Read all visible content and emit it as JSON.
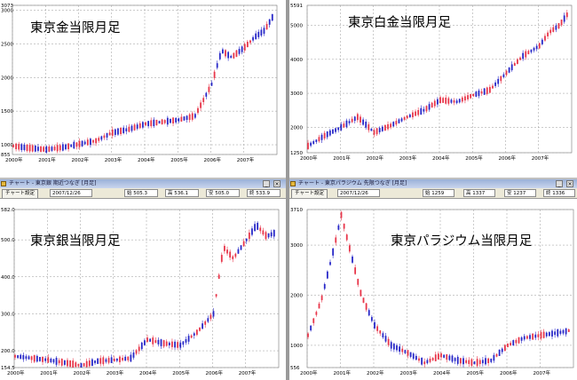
{
  "panels": [
    {
      "id": "gold",
      "chart_title": "東京金当限月足",
      "y_ticks": [
        "3073",
        "3000",
        "2500",
        "2000",
        "1500",
        "1000",
        "855"
      ],
      "x_ticks": [
        "2000年",
        "2001年",
        "2002年",
        "2003年",
        "2004年",
        "2005年",
        "2006年",
        "2007年"
      ]
    },
    {
      "id": "platinum",
      "chart_title": "東京白金当限月足",
      "y_ticks": [
        "5591",
        "5000",
        "4000",
        "3000",
        "2000",
        "1250"
      ],
      "x_ticks": [
        "2000年",
        "2001年",
        "2002年",
        "2003年",
        "2004年",
        "2005年",
        "2006年",
        "2007年"
      ]
    },
    {
      "id": "silver",
      "chart_title": "東京銀当限月足",
      "y_ticks": [
        "582.0",
        "500.0",
        "400.0",
        "300.0",
        "200.0",
        "154.5"
      ],
      "x_ticks": [
        "2000年",
        "2001年",
        "2002年",
        "2003年",
        "2004年",
        "2005年",
        "2006年",
        "2007年"
      ]
    },
    {
      "id": "palladium",
      "chart_title": "東京パラジウム当限月足",
      "y_ticks": [
        "3710",
        "3000",
        "2000",
        "1000",
        "556"
      ],
      "x_ticks": [
        "2000年",
        "2001年",
        "2002年",
        "2003年",
        "2004年",
        "2005年",
        "2006年",
        "2007年"
      ]
    }
  ],
  "windows": {
    "silver": {
      "title": "チャート - 東京銀 期近つなぎ [月足]",
      "settings_label": "チャート設定",
      "date": "2007/12/26",
      "fields": [
        "始 505.3",
        "高 536.1",
        "安 505.0",
        "終 533.9"
      ]
    },
    "palladium": {
      "title": "チャート - 東京パラジウム 先限つなぎ [月足]",
      "settings_label": "チャート設定",
      "date": "2007/12/26",
      "fields": [
        "始 1259",
        "高 1337",
        "安 1237",
        "終 1336"
      ]
    }
  },
  "colors": {
    "up": "#e8364a",
    "down": "#2828c8",
    "grid": "#9a9a9a",
    "background": "#ffffff"
  },
  "chart_data": [
    {
      "type": "candlestick",
      "title": "東京金当限月足",
      "x_range": [
        2000.0,
        2008.0
      ],
      "ylim": [
        855,
        3073
      ],
      "series": [
        {
          "x": [
            2000.0,
            2000.5,
            2001.0,
            2001.5,
            2002.0,
            2002.5,
            2003.0,
            2003.5,
            2004.0,
            2004.5,
            2005.0,
            2005.5,
            2006.0,
            2006.3,
            2006.6,
            2007.0,
            2007.3,
            2007.6,
            2007.9
          ],
          "y": [
            980,
            950,
            930,
            960,
            1010,
            1060,
            1180,
            1230,
            1310,
            1340,
            1370,
            1430,
            1900,
            2400,
            2300,
            2450,
            2600,
            2700,
            2950
          ]
        }
      ]
    },
    {
      "type": "candlestick",
      "title": "東京白金当限月足",
      "x_range": [
        2000.0,
        2008.0
      ],
      "ylim": [
        1250,
        5591
      ],
      "series": [
        {
          "x": [
            2000.0,
            2000.5,
            2001.0,
            2001.5,
            2002.0,
            2002.5,
            2003.0,
            2003.5,
            2004.0,
            2004.5,
            2005.0,
            2005.5,
            2006.0,
            2006.5,
            2007.0,
            2007.3,
            2007.6,
            2007.9
          ],
          "y": [
            1450,
            1750,
            2000,
            2300,
            1850,
            2050,
            2300,
            2500,
            2800,
            2750,
            2950,
            3100,
            3600,
            4100,
            4400,
            4800,
            5000,
            5400
          ]
        }
      ]
    },
    {
      "type": "candlestick",
      "title": "東京銀当限月足",
      "x_range": [
        2000.0,
        2008.0
      ],
      "ylim": [
        154.5,
        582.0
      ],
      "series": [
        {
          "x": [
            2000.0,
            2000.5,
            2001.0,
            2001.5,
            2002.0,
            2002.5,
            2003.0,
            2003.5,
            2004.0,
            2004.5,
            2005.0,
            2005.5,
            2006.0,
            2006.3,
            2006.6,
            2007.0,
            2007.3,
            2007.6,
            2007.9
          ],
          "y": [
            185,
            180,
            175,
            168,
            160,
            172,
            175,
            180,
            230,
            220,
            215,
            250,
            300,
            480,
            450,
            500,
            540,
            510,
            520
          ]
        }
      ]
    },
    {
      "type": "candlestick",
      "title": "東京パラジウム当限月足",
      "x_range": [
        2000.0,
        2008.0
      ],
      "ylim": [
        556,
        3710
      ],
      "series": [
        {
          "x": [
            2000.0,
            2000.4,
            2000.8,
            2001.0,
            2001.3,
            2001.6,
            2002.0,
            2002.5,
            2003.0,
            2003.5,
            2004.0,
            2004.5,
            2005.0,
            2005.5,
            2006.0,
            2006.5,
            2007.0,
            2007.5,
            2007.9
          ],
          "y": [
            1200,
            1900,
            3000,
            3600,
            2800,
            2000,
            1400,
            1000,
            850,
            650,
            800,
            700,
            650,
            700,
            1000,
            1150,
            1200,
            1250,
            1300
          ]
        }
      ]
    }
  ]
}
